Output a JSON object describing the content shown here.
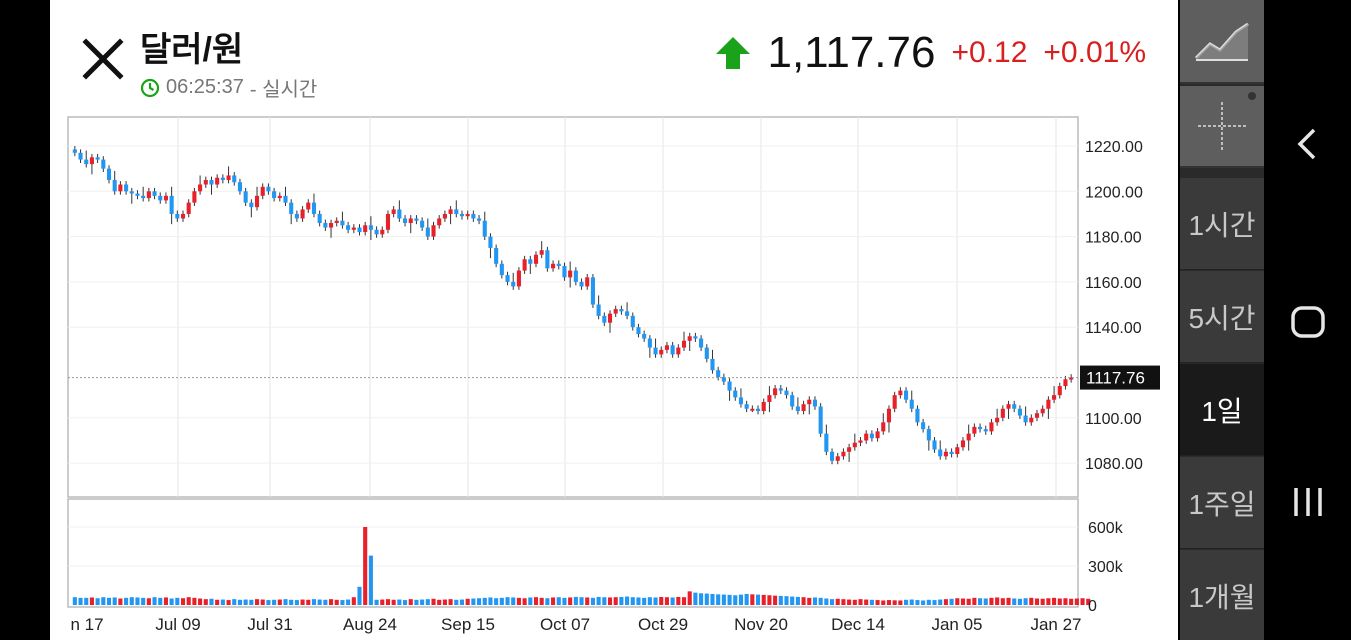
{
  "header": {
    "title": "달러/원",
    "time": "06:25:37",
    "realtime_label": "- 실시간",
    "price": "1,117.76",
    "change": "+0.12",
    "change_pct": "+0.01%",
    "direction": "up"
  },
  "colors": {
    "up": "#e8202a",
    "down": "#2196f3",
    "accent_green": "#1aa31a",
    "change_red": "#d81e1e"
  },
  "sidebar": {
    "tabs": [
      {
        "label": "1시간",
        "active": false
      },
      {
        "label": "5시간",
        "active": false
      },
      {
        "label": "1일",
        "active": true
      },
      {
        "label": "1주일",
        "active": false
      },
      {
        "label": "1개월",
        "active": false
      }
    ]
  },
  "chart_data": {
    "type": "candlestick",
    "current_price_label": "1117.76",
    "current_price": 1117.76,
    "y_ticks": [
      "1220.00",
      "1200.00",
      "1180.00",
      "1160.00",
      "1140.00",
      "1100.00",
      "1080.00"
    ],
    "ylim": [
      1070,
      1230
    ],
    "x_labels": [
      "n 17",
      "Jul 09",
      "Jul 31",
      "Aug 24",
      "Sep 15",
      "Oct 07",
      "Oct 29",
      "Nov 20",
      "Dec 14",
      "Jan 05",
      "Jan 27"
    ],
    "volume_ticks": [
      "600k",
      "300k",
      "0"
    ],
    "volume_max": 600,
    "closes": [
      1217,
      1214,
      1212,
      1215,
      1214,
      1210,
      1205,
      1200,
      1203,
      1200,
      1199,
      1198,
      1197,
      1200,
      1198,
      1196,
      1198,
      1190,
      1188,
      1190,
      1195,
      1200,
      1203,
      1205,
      1203,
      1206,
      1205,
      1207,
      1204,
      1200,
      1195,
      1193,
      1198,
      1202,
      1200,
      1197,
      1198,
      1195,
      1190,
      1188,
      1192,
      1195,
      1190,
      1186,
      1184,
      1186,
      1187,
      1185,
      1183,
      1184,
      1182,
      1185,
      1183,
      1181,
      1183,
      1190,
      1192,
      1188,
      1186,
      1188,
      1187,
      1184,
      1180,
      1185,
      1188,
      1190,
      1192,
      1190,
      1189,
      1190,
      1188,
      1187,
      1180,
      1175,
      1168,
      1163,
      1160,
      1158,
      1165,
      1170,
      1168,
      1172,
      1174,
      1166,
      1168,
      1167,
      1162,
      1165,
      1160,
      1158,
      1162,
      1150,
      1145,
      1142,
      1146,
      1148,
      1147,
      1145,
      1140,
      1137,
      1135,
      1131,
      1128,
      1130,
      1132,
      1128,
      1131,
      1134,
      1136,
      1135,
      1131,
      1126,
      1121,
      1118,
      1116,
      1112,
      1109,
      1106,
      1104,
      1104,
      1103,
      1107,
      1110,
      1113,
      1112,
      1110,
      1105,
      1103,
      1106,
      1108,
      1105,
      1093,
      1085,
      1081,
      1083,
      1085,
      1087,
      1089,
      1090,
      1093,
      1091,
      1094,
      1098,
      1104,
      1110,
      1112,
      1108,
      1104,
      1098,
      1095,
      1090,
      1086,
      1083,
      1085,
      1084,
      1087,
      1090,
      1093,
      1096,
      1095,
      1094,
      1098,
      1100,
      1104,
      1106,
      1104,
      1101,
      1098,
      1100,
      1102,
      1104,
      1108,
      1110,
      1114,
      1117,
      1117.76
    ],
    "volumes": [
      60,
      55,
      55,
      58,
      52,
      60,
      55,
      58,
      50,
      55,
      60,
      58,
      55,
      52,
      60,
      55,
      58,
      50,
      55,
      52,
      60,
      55,
      50,
      45,
      48,
      40,
      42,
      38,
      45,
      40,
      42,
      40,
      45,
      42,
      38,
      40,
      42,
      45,
      40,
      38,
      42,
      40,
      45,
      42,
      40,
      45,
      40,
      38,
      42,
      60,
      140,
      600,
      380,
      40,
      42,
      45,
      40,
      42,
      38,
      45,
      40,
      42,
      45,
      48,
      40,
      42,
      45,
      40,
      42,
      48,
      50,
      52,
      55,
      58,
      52,
      55,
      60,
      58,
      55,
      52,
      58,
      60,
      55,
      52,
      58,
      60,
      55,
      58,
      62,
      60,
      58,
      55,
      62,
      60,
      58,
      60,
      62,
      65,
      60,
      58,
      55,
      60,
      58,
      62,
      60,
      58,
      62,
      60,
      105,
      95,
      90,
      88,
      85,
      82,
      80,
      78,
      75,
      80,
      85,
      82,
      80,
      78,
      75,
      72,
      70,
      68,
      65,
      62,
      60,
      55,
      58,
      55,
      50,
      45,
      48,
      45,
      42,
      40,
      45,
      42,
      40,
      38,
      35,
      38,
      36,
      35,
      40,
      42,
      38,
      35,
      40,
      38,
      42,
      45,
      48,
      52,
      50,
      48,
      55,
      52,
      50,
      55,
      58,
      52,
      55,
      50,
      48,
      52,
      55,
      50,
      48,
      52,
      55,
      50,
      52,
      48,
      50,
      52,
      48
    ]
  }
}
